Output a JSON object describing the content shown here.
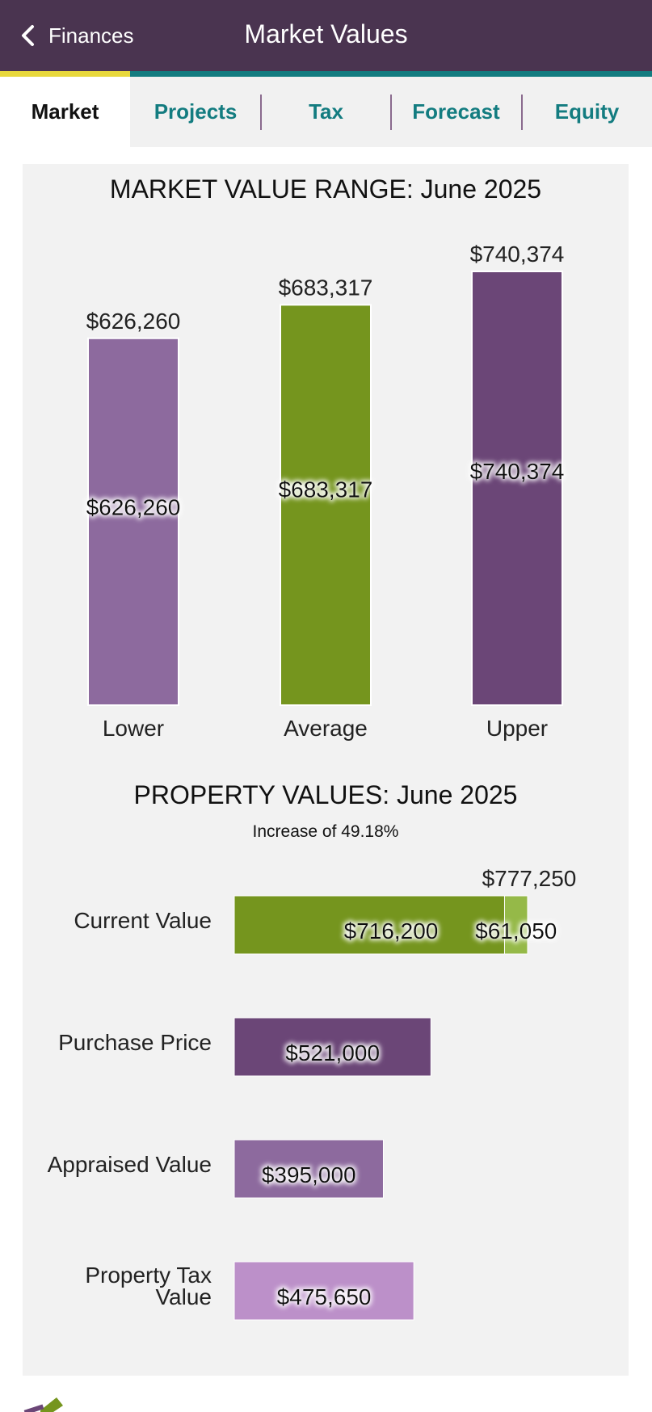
{
  "header": {
    "back_label": "Finances",
    "title": "Market Values"
  },
  "tabs": [
    {
      "label": "Market",
      "active": true
    },
    {
      "label": "Projects",
      "active": false
    },
    {
      "label": "Tax",
      "active": false
    },
    {
      "label": "Forecast",
      "active": false
    },
    {
      "label": "Equity",
      "active": false
    }
  ],
  "colors": {
    "header_bg": "#4a3450",
    "tab_accent_active": "#e8d83c",
    "tab_accent": "#137c80",
    "tab_text": "#137c80",
    "lower": "#8d6a9e",
    "average": "#75951e",
    "upper": "#6b4677",
    "current": "#75951e",
    "current_increase": "#95b948",
    "purchase": "#6b4677",
    "appraised": "#8d6a9e",
    "property_tax": "#bc90c9"
  },
  "chart_data": [
    {
      "type": "bar",
      "title": "MARKET VALUE RANGE: June 2025",
      "categories": [
        "Lower",
        "Average",
        "Upper"
      ],
      "values": [
        626260,
        683317,
        740374
      ],
      "value_labels": [
        "$626,260",
        "$683,317",
        "$740,374"
      ],
      "ylim": [
        0,
        740374
      ],
      "grid": false,
      "legend": "none"
    },
    {
      "type": "bar",
      "orientation": "horizontal",
      "title": "PROPERTY VALUES: June 2025",
      "subtitle": "Increase of 49.18%",
      "categories": [
        "Current Value",
        "Purchase Price",
        "Appraised Value",
        "Property Tax Value"
      ],
      "series": [
        {
          "values": [
            716200,
            521000,
            395000,
            475650
          ],
          "value_labels": [
            "$716,200",
            "$521,000",
            "$395,000",
            "$475,650"
          ]
        },
        {
          "values": [
            61050,
            0,
            0,
            0
          ],
          "value_labels": [
            "$61,050",
            "",
            "",
            ""
          ]
        }
      ],
      "totals": [
        777250,
        null,
        null,
        null
      ],
      "total_labels": [
        "$777,250",
        "",
        "",
        ""
      ],
      "xlim": [
        0,
        777250
      ],
      "grid": false,
      "legend": "none"
    }
  ]
}
